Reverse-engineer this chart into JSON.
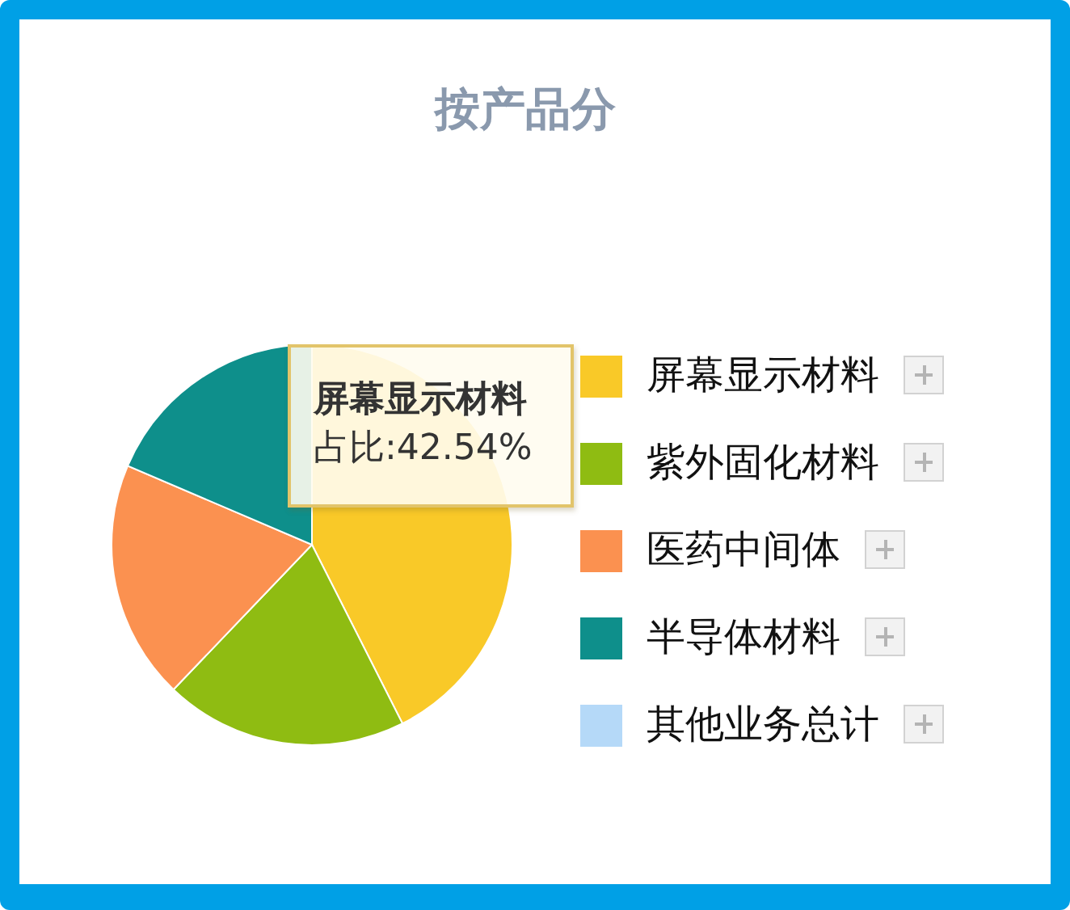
{
  "chart_data": {
    "type": "pie",
    "title": "按产品分",
    "categories": [
      "屏幕显示材料",
      "紫外固化材料",
      "医药中间体",
      "半导体材料",
      "其他业务总计"
    ],
    "values": [
      42.54,
      19.6,
      19.3,
      18.56,
      0
    ],
    "colors": [
      "#f9c928",
      "#8fbc12",
      "#fb9150",
      "#0e8f8b",
      "#b5d9f8"
    ],
    "legend": "right",
    "annotations": [
      "屏幕显示材料",
      "占比:42.54%"
    ]
  }
}
